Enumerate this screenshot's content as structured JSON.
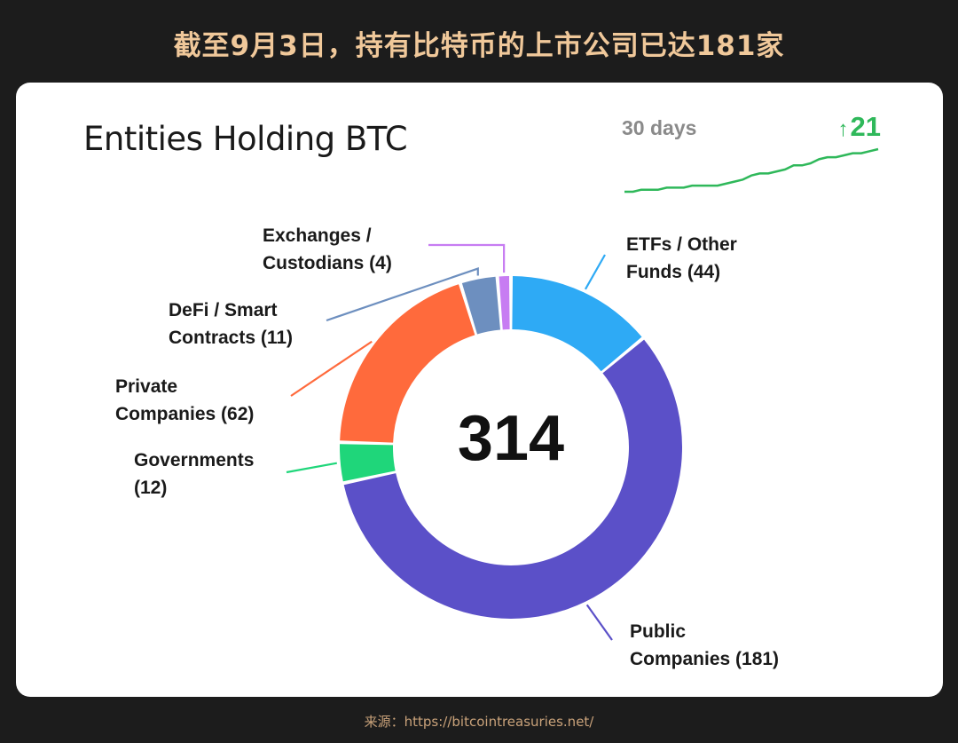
{
  "banner": {
    "title": "截至9月3日，持有比特币的上市公司已达181家"
  },
  "source": {
    "text": "来源：https://bitcointreasuries.net/"
  },
  "chart_data": {
    "type": "pie",
    "title": "Entities Holding BTC",
    "total": "314",
    "slices": [
      {
        "label_line1": "ETFs / Other",
        "label_line2": "Funds (44)",
        "value": 44,
        "color": "#2eaaf5"
      },
      {
        "label_line1": "Public",
        "label_line2": "Companies (181)",
        "value": 181,
        "color": "#5b50c8"
      },
      {
        "label_line1": "Governments",
        "label_line2": "(12)",
        "value": 12,
        "color": "#1fd67a"
      },
      {
        "label_line1": "Private",
        "label_line2": "Companies (62)",
        "value": 62,
        "color": "#ff6a3c"
      },
      {
        "label_line1": "DeFi / Smart",
        "label_line2": "Contracts (11)",
        "value": 11,
        "color": "#6d8fbf"
      },
      {
        "label_line1": "Exchanges /",
        "label_line2": "Custodians (4)",
        "value": 4,
        "color": "#c77cf2"
      }
    ],
    "trend": {
      "label": "30 days",
      "delta": "21",
      "arrow": "↑",
      "color": "#2fb85a",
      "values": [
        0,
        0,
        1,
        1,
        1,
        2,
        2,
        2,
        3,
        3,
        3,
        3,
        4,
        5,
        6,
        8,
        9,
        9,
        10,
        11,
        13,
        13,
        14,
        16,
        17,
        17,
        18,
        19,
        19,
        20,
        21
      ]
    }
  }
}
